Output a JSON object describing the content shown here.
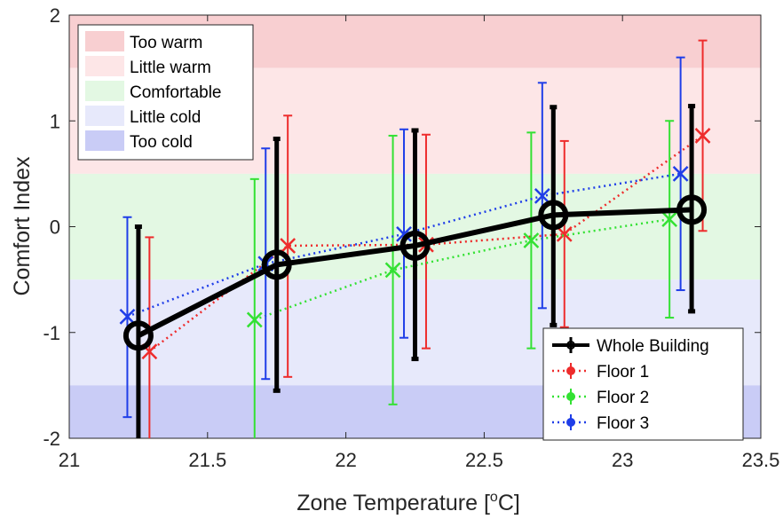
{
  "chart_data": {
    "type": "line",
    "title": "",
    "xlabel": "Zone Temperature [",
    "xlabel_sup": "o",
    "xlabel_unit": "C]",
    "ylabel": "Comfort Index",
    "xlim": [
      21,
      23.5
    ],
    "ylim": [
      -2,
      2
    ],
    "xticks": [
      "21",
      "21.5",
      "22",
      "22.5",
      "23",
      "23.5"
    ],
    "xtick_values": [
      21,
      21.5,
      22,
      22.5,
      23,
      23.5
    ],
    "yticks": [
      "-2",
      "-1",
      "0",
      "1",
      "2"
    ],
    "ytick_values": [
      -2,
      -1,
      0,
      1,
      2
    ],
    "grid": false,
    "bands": [
      {
        "label": "Too warm",
        "from": 1.5,
        "to": 2,
        "color": "#f8cfd1"
      },
      {
        "label": "Little warm",
        "from": 0.5,
        "to": 1.5,
        "color": "#fde6e7"
      },
      {
        "label": "Comfortable",
        "from": -0.5,
        "to": 0.5,
        "color": "#e3f8e3"
      },
      {
        "label": "Little cold",
        "from": -1.5,
        "to": -0.5,
        "color": "#e7e9fb"
      },
      {
        "label": "Too cold",
        "from": -2,
        "to": -1.5,
        "color": "#c9ccf6"
      }
    ],
    "band_legend_position": "top-left",
    "series_legend_position": "bottom-right",
    "series": [
      {
        "name": "Whole Building",
        "color": "#000000",
        "line_style": "solid",
        "marker": "circle",
        "x": [
          21.25,
          21.75,
          22.25,
          22.75,
          23.25
        ],
        "y": [
          -1.03,
          -0.36,
          -0.18,
          0.11,
          0.16
        ],
        "err_low": [
          -2.0,
          -1.55,
          -1.25,
          -0.93,
          -0.8
        ],
        "err_high": [
          0.0,
          0.83,
          0.91,
          1.13,
          1.14
        ]
      },
      {
        "name": "Floor 1",
        "color": "#ee2c2c",
        "line_style": "dotted",
        "marker": "x",
        "x": [
          21.29,
          21.79,
          22.29,
          22.79,
          23.29
        ],
        "y": [
          -1.18,
          -0.18,
          -0.17,
          -0.07,
          0.86
        ],
        "err_low": [
          -2.0,
          -1.42,
          -1.15,
          -0.95,
          -0.04
        ],
        "err_high": [
          -0.1,
          1.05,
          0.87,
          0.81,
          1.76
        ]
      },
      {
        "name": "Floor 2",
        "color": "#33e133",
        "line_style": "dotted",
        "marker": "x",
        "x": [
          21.67,
          22.17,
          22.67,
          23.17
        ],
        "y": [
          -0.88,
          -0.41,
          -0.13,
          0.07
        ],
        "err_low": [
          -2.0,
          -1.68,
          -1.15,
          -0.86
        ],
        "err_high": [
          0.45,
          0.86,
          0.89,
          1.0
        ]
      },
      {
        "name": "Floor 3",
        "color": "#1f3ee8",
        "line_style": "dotted",
        "marker": "x",
        "x": [
          21.21,
          21.71,
          22.21,
          22.71,
          23.21
        ],
        "y": [
          -0.85,
          -0.35,
          -0.07,
          0.29,
          0.5
        ],
        "err_low": [
          -1.8,
          -1.44,
          -1.05,
          -0.77,
          -0.6
        ],
        "err_high": [
          0.09,
          0.74,
          0.92,
          1.36,
          1.6
        ]
      }
    ]
  }
}
